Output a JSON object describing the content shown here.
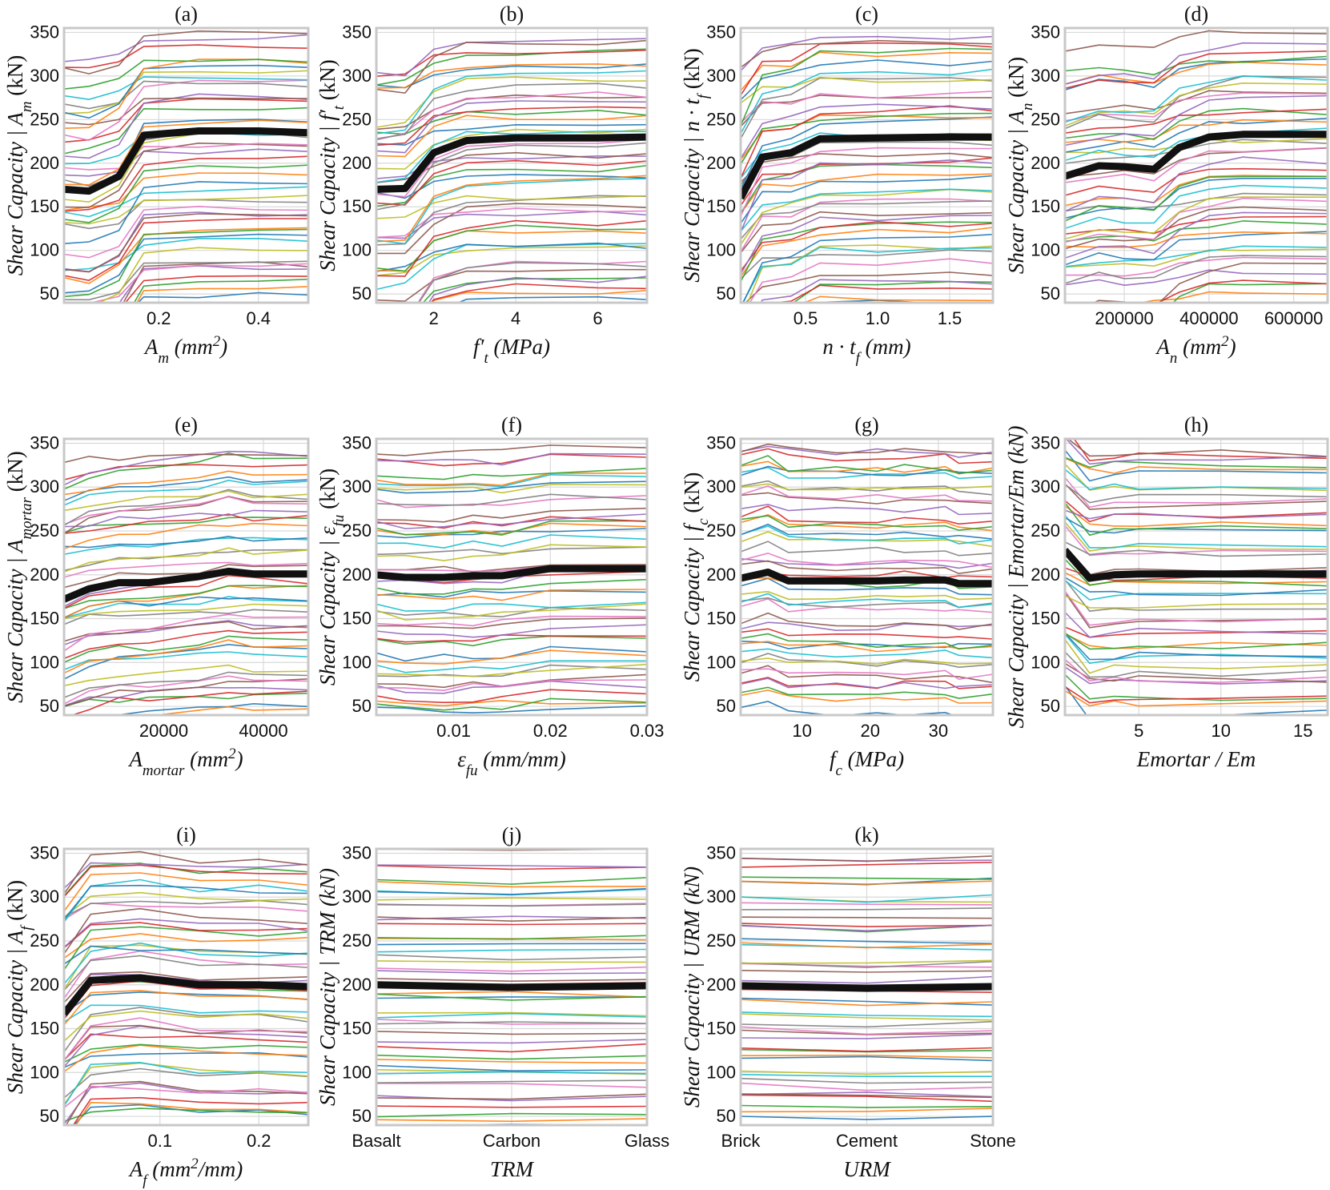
{
  "chart_data": [
    {
      "label": "(a)",
      "type": "line",
      "xlabel": "A_m (mm²)",
      "ylabel": "Shear Capacity | A_m (kN)",
      "xlim": [
        0.01,
        0.5
      ],
      "ylim": [
        40,
        355
      ],
      "xticks": [
        0.2,
        0.4
      ],
      "xtick_labels": [
        "0.2",
        "0.4"
      ],
      "yticks": [
        50,
        100,
        150,
        200,
        250,
        300,
        350
      ],
      "mean": {
        "x": [
          0.01,
          0.06,
          0.12,
          0.17,
          0.28,
          0.4,
          0.5
        ],
        "y": [
          170,
          168,
          185,
          232,
          237,
          237,
          235
        ]
      }
    },
    {
      "label": "(b)",
      "type": "line",
      "xlabel": "f′t (MPa)",
      "ylabel": "Shear Capacity | f′t (kN)",
      "xlim": [
        0.6,
        7.2
      ],
      "ylim": [
        40,
        355
      ],
      "xticks": [
        2,
        4,
        6
      ],
      "xtick_labels": [
        "2",
        "4",
        "6"
      ],
      "yticks": [
        50,
        100,
        150,
        200,
        250,
        300,
        350
      ],
      "mean": {
        "x": [
          0.6,
          1.3,
          2.0,
          2.8,
          4.0,
          6.0,
          7.2
        ],
        "y": [
          170,
          171,
          212,
          226,
          229,
          229,
          230
        ]
      }
    },
    {
      "label": "(c)",
      "type": "line",
      "xlabel": "n·t_f (mm)",
      "ylabel": "Shear Capacity | n·t_f (kN)",
      "xlim": [
        0.05,
        1.8
      ],
      "ylim": [
        40,
        355
      ],
      "xticks": [
        0.5,
        1.0,
        1.5
      ],
      "xtick_labels": [
        "0.5",
        "1.0",
        "1.5"
      ],
      "yticks": [
        50,
        100,
        150,
        200,
        250,
        300,
        350
      ],
      "mean": {
        "x": [
          0.05,
          0.2,
          0.4,
          0.6,
          1.0,
          1.5,
          1.8
        ],
        "y": [
          160,
          207,
          212,
          228,
          229,
          230,
          230
        ]
      }
    },
    {
      "label": "(d)",
      "type": "line",
      "xlabel": "A_n (mm²)",
      "ylabel": "Shear Capacity | A_n (kN)",
      "xlim": [
        60000,
        680000
      ],
      "ylim": [
        40,
        355
      ],
      "xticks": [
        200000,
        400000,
        600000
      ],
      "xtick_labels": [
        "200000",
        "400000",
        "600000"
      ],
      "yticks": [
        50,
        100,
        150,
        200,
        250,
        300,
        350
      ],
      "mean": {
        "x": [
          60000,
          140000,
          200000,
          270000,
          330000,
          400000,
          480000,
          680000
        ],
        "y": [
          185,
          197,
          196,
          193,
          218,
          230,
          233,
          233
        ]
      }
    },
    {
      "label": "(e)",
      "type": "line",
      "xlabel": "A_mortar (mm²)",
      "ylabel": "Shear Capacity | A_mortar (kN)",
      "xlim": [
        0,
        49000
      ],
      "ylim": [
        40,
        355
      ],
      "xticks": [
        20000,
        40000
      ],
      "xtick_labels": [
        "20000",
        "40000"
      ],
      "yticks": [
        50,
        100,
        150,
        200,
        250,
        300,
        350
      ],
      "mean": {
        "x": [
          0,
          5000,
          11000,
          17000,
          27000,
          33000,
          38000,
          49000
        ],
        "y": [
          172,
          184,
          191,
          191,
          198,
          204,
          201,
          201
        ]
      }
    },
    {
      "label": "(f)",
      "type": "line",
      "xlabel": "ε_fu (mm/mm)",
      "ylabel": "Shear Capacity | ε_fu (kN)",
      "xlim": [
        0.002,
        0.03
      ],
      "ylim": [
        40,
        355
      ],
      "xticks": [
        0.01,
        0.02,
        0.03
      ],
      "xtick_labels": [
        "0.01",
        "0.02",
        "0.03"
      ],
      "yticks": [
        50,
        100,
        150,
        200,
        250,
        300,
        350
      ],
      "mean": {
        "x": [
          0.002,
          0.005,
          0.009,
          0.012,
          0.015,
          0.02,
          0.03
        ],
        "y": [
          200,
          197,
          197,
          199,
          199,
          207,
          207
        ]
      }
    },
    {
      "label": "(g)",
      "type": "line",
      "xlabel": "f_c (MPa)",
      "ylabel": "Shear Capacity | f_c (kN)",
      "xlim": [
        1,
        38
      ],
      "ylim": [
        40,
        355
      ],
      "xticks": [
        10,
        20,
        30
      ],
      "xtick_labels": [
        "10",
        "20",
        "30"
      ],
      "yticks": [
        50,
        100,
        150,
        200,
        250,
        300,
        350
      ],
      "mean": {
        "x": [
          1,
          5,
          8,
          15,
          21,
          25,
          31,
          33,
          38
        ],
        "y": [
          196,
          203,
          193,
          193,
          193,
          194,
          194,
          190,
          190
        ]
      }
    },
    {
      "label": "(h)",
      "type": "line",
      "xlabel": "Emortar / Em",
      "ylabel": "Shear Capacity | Emortar/Em (kN)",
      "xlim": [
        0.5,
        16.5
      ],
      "ylim": [
        40,
        355
      ],
      "xticks": [
        5,
        10,
        15
      ],
      "xtick_labels": [
        "5",
        "10",
        "15"
      ],
      "yticks": [
        50,
        100,
        150,
        200,
        250,
        300,
        350
      ],
      "mean": {
        "x": [
          0.5,
          2,
          3.5,
          5,
          10,
          16.5
        ],
        "y": [
          228,
          196,
          200,
          201,
          201,
          201
        ]
      }
    },
    {
      "label": "(i)",
      "type": "line",
      "xlabel": "A_f (mm²/mm)",
      "ylabel": "Shear Capacity | A_f (kN)",
      "xlim": [
        0.003,
        0.25
      ],
      "ylim": [
        40,
        355
      ],
      "xticks": [
        0.1,
        0.2
      ],
      "xtick_labels": [
        "0.1",
        "0.2"
      ],
      "yticks": [
        50,
        100,
        150,
        200,
        250,
        300,
        350
      ],
      "mean": {
        "x": [
          0.003,
          0.03,
          0.08,
          0.14,
          0.2,
          0.25
        ],
        "y": [
          167,
          205,
          208,
          200,
          200,
          198
        ]
      }
    },
    {
      "label": "(j)",
      "type": "line",
      "xlabel": "TRM",
      "ylabel": "Shear Capacity | TRM (kN)",
      "xlim": [
        0,
        2
      ],
      "ylim": [
        40,
        355
      ],
      "xticks": [
        0,
        1,
        2
      ],
      "xtick_labels": [
        "Basalt",
        "Carbon",
        "Glass"
      ],
      "yticks": [
        50,
        100,
        150,
        200,
        250,
        300,
        350
      ],
      "mean": {
        "x": [
          0,
          1,
          2
        ],
        "y": [
          200,
          197,
          199
        ]
      }
    },
    {
      "label": "(k)",
      "type": "line",
      "xlabel": "URM",
      "ylabel": "Shear Capacity | URM (kN)",
      "xlim": [
        0,
        2
      ],
      "ylim": [
        40,
        355
      ],
      "xticks": [
        0,
        1,
        2
      ],
      "xtick_labels": [
        "Brick",
        "Cement",
        "Stone"
      ],
      "yticks": [
        50,
        100,
        150,
        200,
        250,
        300,
        350
      ],
      "mean": {
        "x": [
          0,
          1,
          2
        ],
        "y": [
          199,
          196,
          198
        ]
      }
    }
  ],
  "series_colors": [
    "#1f77b4",
    "#ff7f0e",
    "#2ca02c",
    "#d62728",
    "#9467bd",
    "#8c564b",
    "#e377c2",
    "#7f7f7f",
    "#bcbd22",
    "#17becf"
  ],
  "mean_color": "#111111",
  "grid": true
}
